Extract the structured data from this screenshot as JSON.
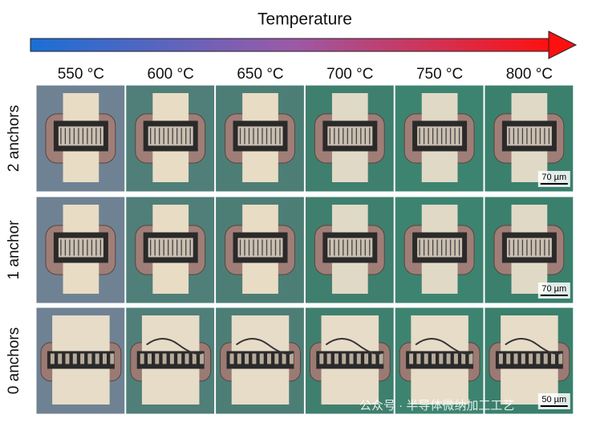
{
  "header": {
    "title": "Temperature"
  },
  "columns": [
    "550 °C",
    "600 °C",
    "650 °C",
    "700 °C",
    "750 °C",
    "800 °C"
  ],
  "rows": [
    "2 anchors",
    "1 anchor",
    "0 anchors"
  ],
  "scale_bars": [
    "70 µm",
    "70 µm",
    "50 µm"
  ],
  "watermark": "公众号 · 半导体微纳加工工艺"
}
